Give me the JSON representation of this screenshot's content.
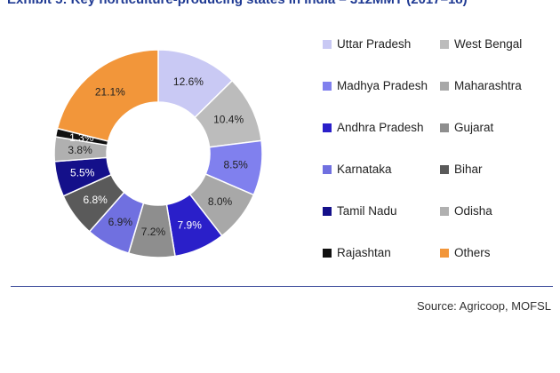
{
  "header": {
    "title": "Exhibit 5: Key horticulture-producing states in India – 312MMT (2017–18)"
  },
  "footer": {
    "source": "Source: Agricoop, MOFSL"
  },
  "chart_data": {
    "type": "pie",
    "subtype": "donut",
    "title": "Exhibit 5: Key horticulture-producing states in India – 312MMT (2017–18)",
    "legend_position": "right",
    "value_unit": "%",
    "slices": [
      {
        "name": "Uttar Pradesh",
        "value": 12.6,
        "label": "12.6%",
        "color": "#c9c9f4"
      },
      {
        "name": "West Bengal",
        "value": 10.4,
        "label": "10.4%",
        "color": "#bcbcbc"
      },
      {
        "name": "Madhya Pradesh",
        "value": 8.5,
        "label": "8.5%",
        "color": "#8080ee"
      },
      {
        "name": "Maharashtra",
        "value": 8.0,
        "label": "8.0%",
        "color": "#a8a8a8"
      },
      {
        "name": "Andhra Pradesh",
        "value": 7.9,
        "label": "7.9%",
        "color": "#2a1fc9"
      },
      {
        "name": "Gujarat",
        "value": 7.2,
        "label": "7.2%",
        "color": "#8e8e8e"
      },
      {
        "name": "Karnataka",
        "value": 6.9,
        "label": "6.9%",
        "color": "#7070e0"
      },
      {
        "name": "Bihar",
        "value": 6.8,
        "label": "6.8%",
        "color": "#5a5a5a"
      },
      {
        "name": "Tamil Nadu",
        "value": 5.5,
        "label": "5.5%",
        "color": "#14108a"
      },
      {
        "name": "Odisha",
        "value": 3.8,
        "label": "3.8%",
        "color": "#b0b0b0"
      },
      {
        "name": "Rajashtan",
        "value": 1.3,
        "label": "1.3%",
        "color": "#111111"
      },
      {
        "name": "Others",
        "value": 21.1,
        "label": "21.1%",
        "color": "#f2963a"
      }
    ]
  }
}
